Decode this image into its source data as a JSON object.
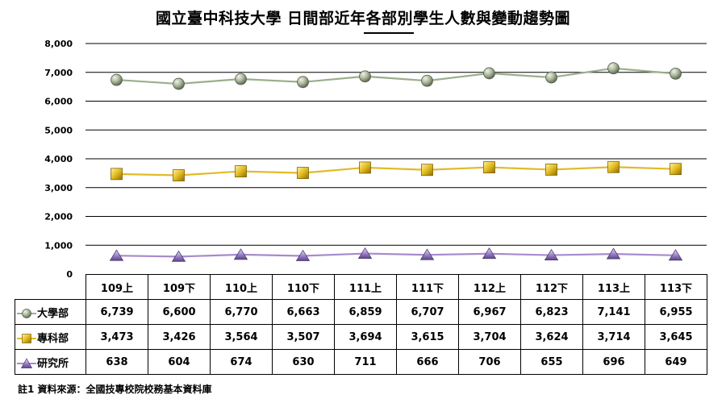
{
  "chart_data": {
    "type": "line",
    "title": "國立臺中科技大學 日間部近年各部別學生人數與變動趨勢圖",
    "categories": [
      "109上",
      "109下",
      "110上",
      "110下",
      "111上",
      "111下",
      "112上",
      "112下",
      "113上",
      "113下"
    ],
    "series": [
      {
        "name": "大學部",
        "values": [
          6739,
          6600,
          6770,
          6663,
          6859,
          6707,
          6967,
          6823,
          7141,
          6955
        ],
        "marker": "circle",
        "color": "#9aae8c",
        "marker_color": "#8f9c7f"
      },
      {
        "name": "專科部",
        "values": [
          3473,
          3426,
          3564,
          3507,
          3694,
          3615,
          3704,
          3624,
          3714,
          3645
        ],
        "marker": "square",
        "color": "#e2b92a",
        "marker_color": "#d9b41c"
      },
      {
        "name": "研究所",
        "values": [
          638,
          604,
          674,
          630,
          711,
          666,
          706,
          655,
          696,
          649
        ],
        "marker": "triangle",
        "color": "#a78bcc",
        "marker_color": "#8e73bd"
      }
    ],
    "ylim": [
      0,
      8000
    ],
    "yticks": [
      0,
      1000,
      2000,
      3000,
      4000,
      5000,
      6000,
      7000,
      8000
    ],
    "ytick_labels": [
      "0",
      "1,000",
      "2,000",
      "3,000",
      "4,000",
      "5,000",
      "6,000",
      "7,000",
      "8,000"
    ],
    "grid": true,
    "legend": "table",
    "data_table": {
      "rows": [
        [
          "6,739",
          "6,600",
          "6,770",
          "6,663",
          "6,859",
          "6,707",
          "6,967",
          "6,823",
          "7,141",
          "6,955"
        ],
        [
          "3,473",
          "3,426",
          "3,564",
          "3,507",
          "3,694",
          "3,615",
          "3,704",
          "3,624",
          "3,714",
          "3,645"
        ],
        [
          "638",
          "604",
          "674",
          "630",
          "711",
          "666",
          "706",
          "655",
          "696",
          "649"
        ]
      ]
    },
    "note": "註1 資料來源：全國技專校院校務基本資料庫"
  }
}
